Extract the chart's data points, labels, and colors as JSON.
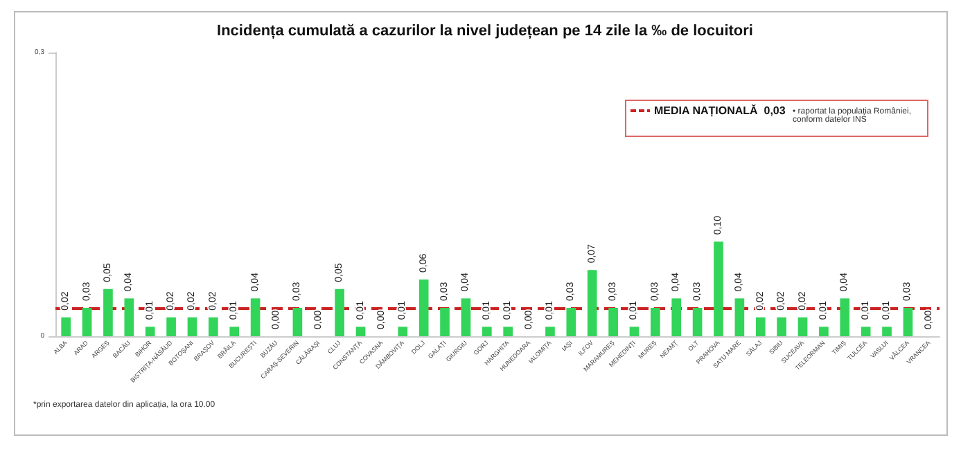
{
  "chart_data": {
    "type": "bar",
    "title": "Incidența cumulată a cazurilor la nivel județean pe 14 zile la ‰ de locuitori",
    "categories": [
      "ALBA",
      "ARAD",
      "ARGEȘ",
      "BACĂU",
      "BIHOR",
      "BISTRIȚA-NĂSĂUD",
      "BOTOȘANI",
      "BRAȘOV",
      "BRĂILA",
      "BUCUREȘTI",
      "BUZĂU",
      "CARAȘ-SEVERIN",
      "CĂLĂRAȘI",
      "CLUJ",
      "CONSTANȚA",
      "COVASNA",
      "DÂMBOVIȚA",
      "DOLJ",
      "GALAȚI",
      "GIURGIU",
      "GORJ",
      "HARGHITA",
      "HUNEDOARA",
      "IALOMIȚA",
      "IAȘI",
      "ILFOV",
      "MARAMUREȘ",
      "MEHEDINȚI",
      "MUREȘ",
      "NEAMȚ",
      "OLT",
      "PRAHOVA",
      "SATU MARE",
      "SĂLAJ",
      "SIBIU",
      "SUCEAVA",
      "TELEORMAN",
      "TIMIȘ",
      "TULCEA",
      "VASLUI",
      "VÂLCEA",
      "VRANCEA"
    ],
    "values": [
      0.02,
      0.03,
      0.05,
      0.04,
      0.01,
      0.02,
      0.02,
      0.02,
      0.01,
      0.04,
      0.0,
      0.03,
      0.0,
      0.05,
      0.01,
      0.0,
      0.01,
      0.06,
      0.03,
      0.04,
      0.01,
      0.01,
      0.0,
      0.01,
      0.03,
      0.07,
      0.03,
      0.01,
      0.03,
      0.04,
      0.03,
      0.1,
      0.04,
      0.02,
      0.02,
      0.02,
      0.01,
      0.04,
      0.01,
      0.01,
      0.03,
      0.0
    ],
    "value_labels": [
      "0,02",
      "0,03",
      "0,05",
      "0,04",
      "0,01",
      "0,02",
      "0,02",
      "0,02",
      "0,01",
      "0,04",
      "0,00",
      "0,03",
      "0,00",
      "0,05",
      "0,01",
      "0,00",
      "0,01",
      "0,06",
      "0,03",
      "0,04",
      "0,01",
      "0,01",
      "0,00",
      "0,01",
      "0,03",
      "0,07",
      "0,03",
      "0,01",
      "0,03",
      "0,04",
      "0,03",
      "0,10",
      "0,04",
      "0,02",
      "0,02",
      "0,02",
      "0,01",
      "0,04",
      "0,01",
      "0,01",
      "0,03",
      "0,00"
    ],
    "color": "#33d45a",
    "ylim": [
      0,
      0.3
    ],
    "yticks": [
      {
        "value": 0,
        "label": "0"
      },
      {
        "value": 0.3,
        "label": "0,3"
      }
    ],
    "grid": false,
    "ref_lines": [
      {
        "axis": "y",
        "value": 0.03,
        "label": "MEDIA NAȚIONALĂ  0,03",
        "color": "#cc2222",
        "line_style": "dashed"
      }
    ],
    "annotations": [
      "• raportat la populația României, conform datelor INS",
      "*prin exportarea datelor din aplicația, la ora 10.00"
    ]
  }
}
